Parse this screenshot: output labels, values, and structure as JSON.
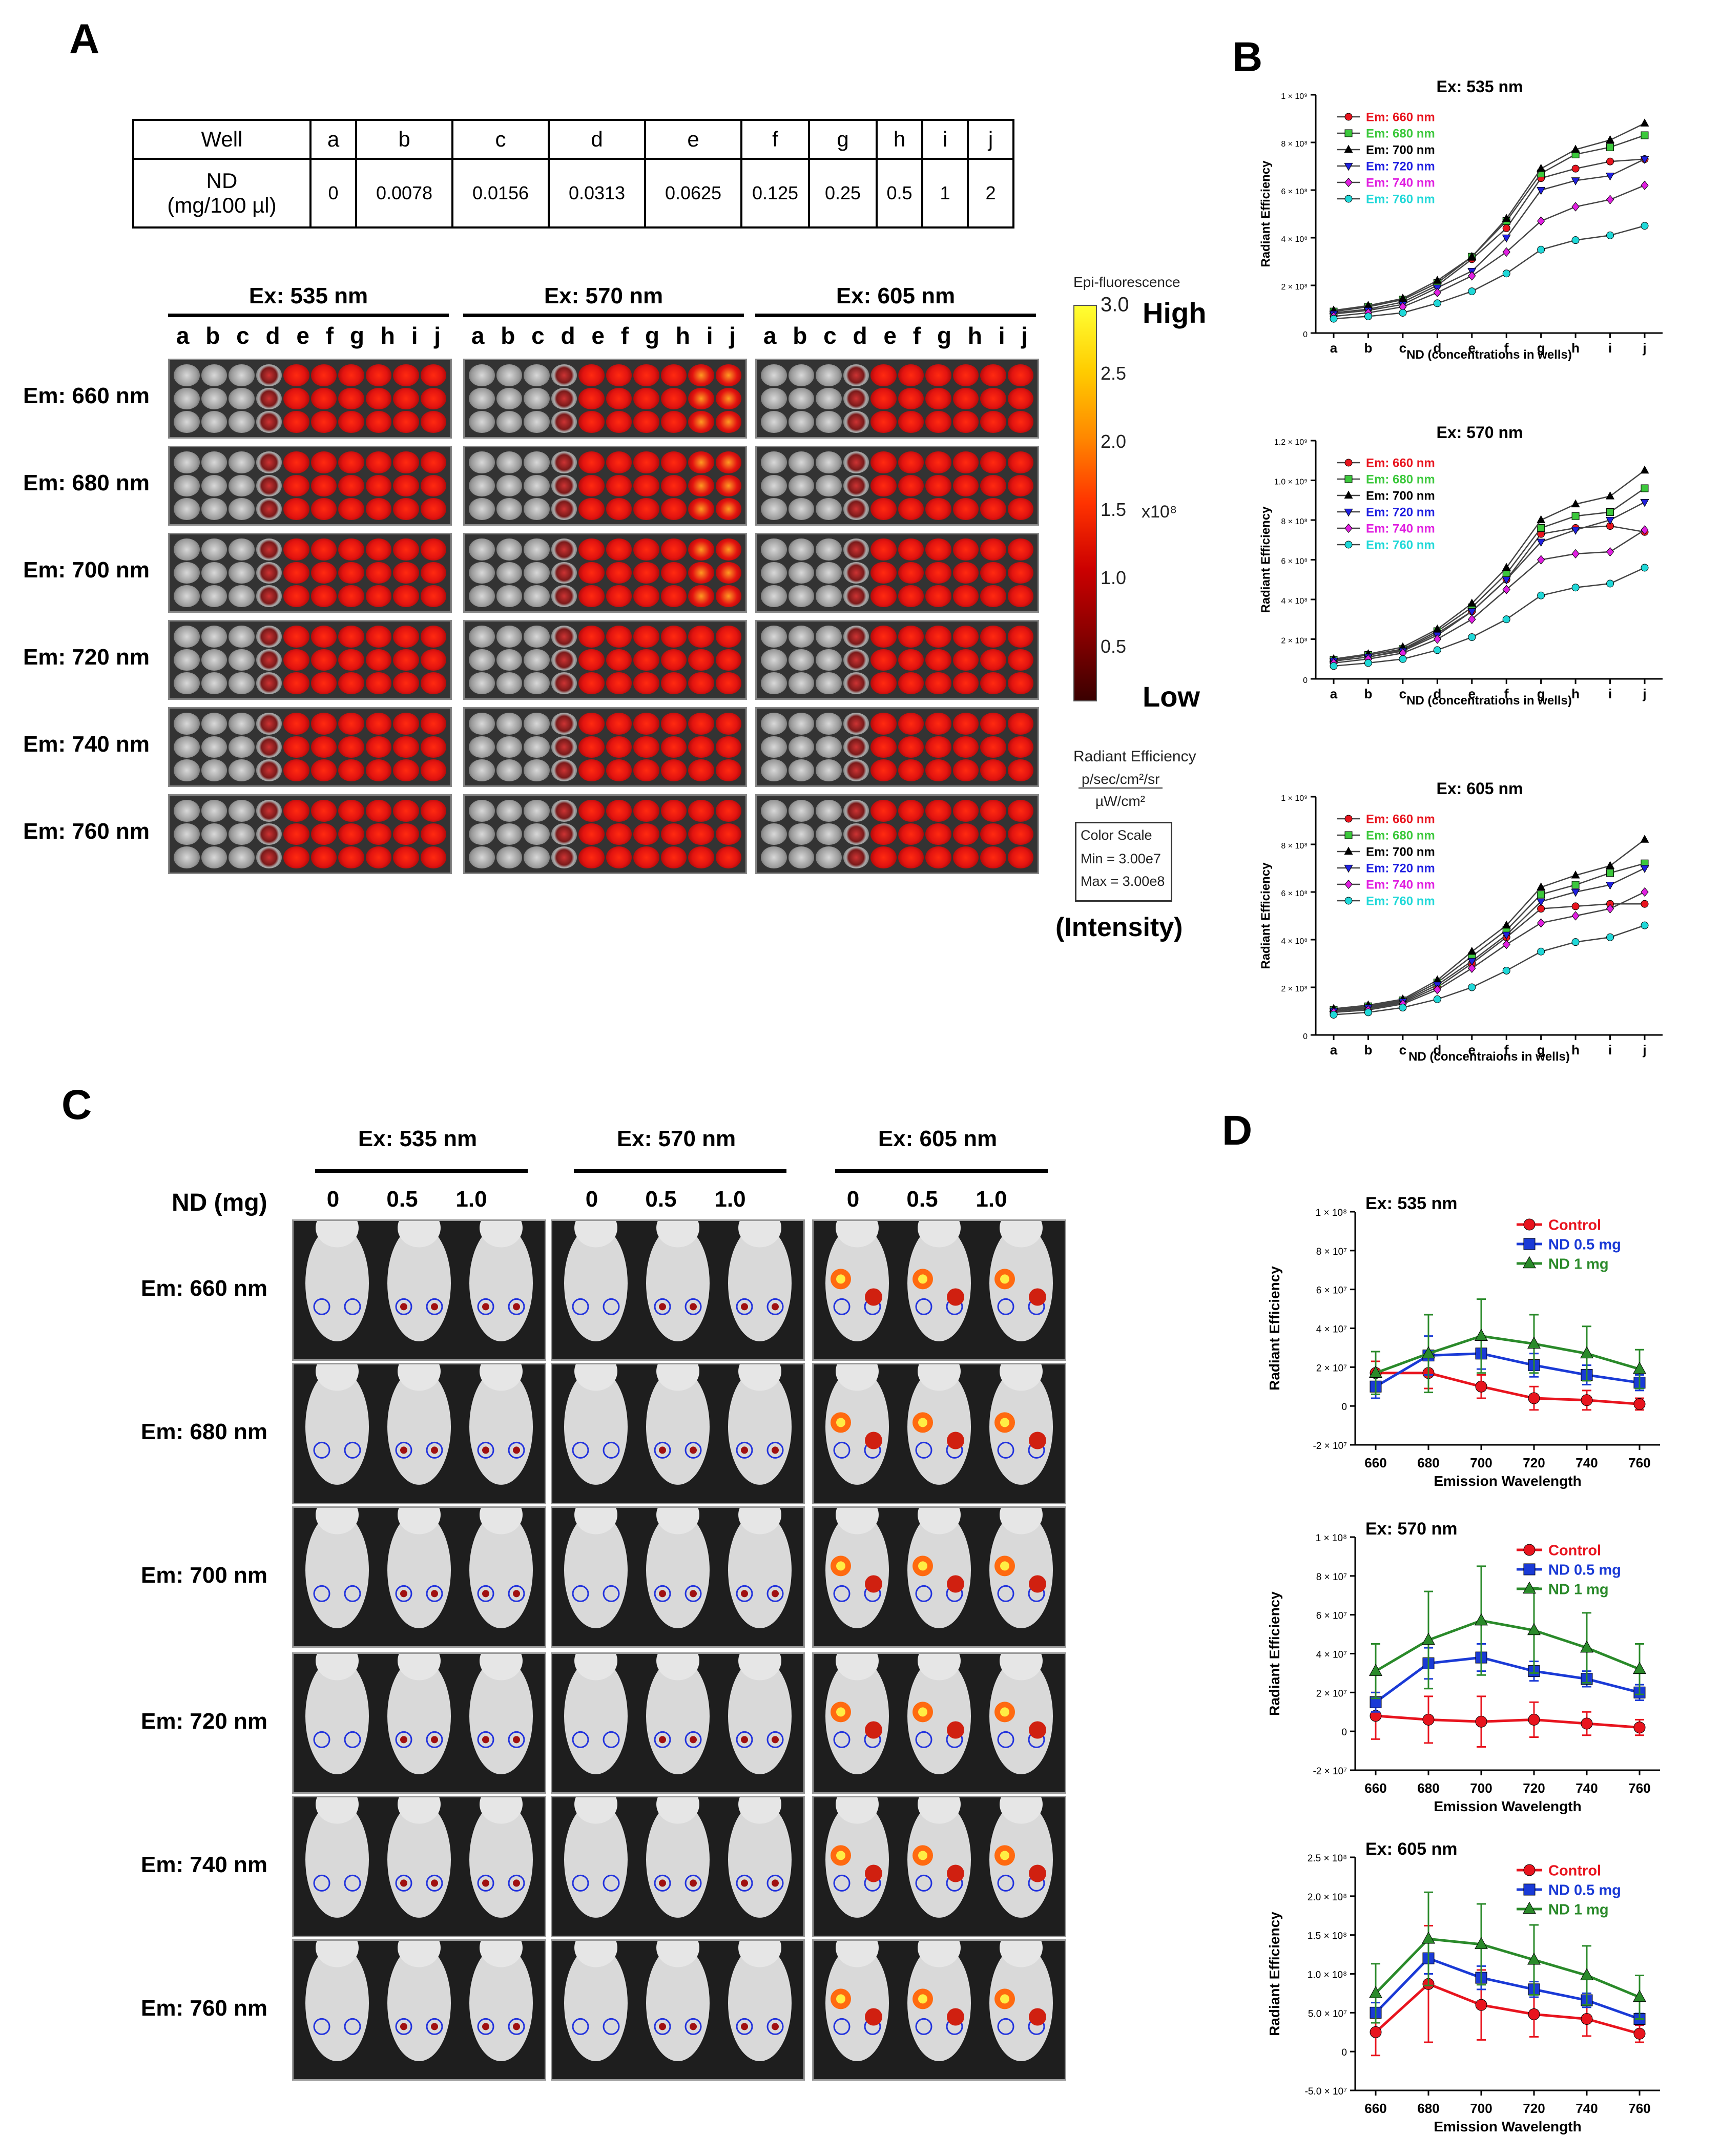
{
  "panels": {
    "A": "A",
    "B": "B",
    "C": "C",
    "D": "D"
  },
  "well_table": {
    "row1_label": "Well",
    "row2_label": "ND\n(mg/100 µl)",
    "wells": [
      "a",
      "b",
      "c",
      "d",
      "e",
      "f",
      "g",
      "h",
      "i",
      "j"
    ],
    "nd_values": [
      "0",
      "0.0078",
      "0.0156",
      "0.0313",
      "0.0625",
      "0.125",
      "0.25",
      "0.5",
      "1",
      "2"
    ]
  },
  "plate_grid": {
    "excitations": [
      "Ex: 535 nm",
      "Ex: 570 nm",
      "Ex: 605 nm"
    ],
    "emissions": [
      "Em: 660 nm",
      "Em: 680 nm",
      "Em: 700 nm",
      "Em: 720 nm",
      "Em: 740 nm",
      "Em: 760 nm"
    ],
    "well_letters": [
      "a",
      "b",
      "c",
      "d",
      "e",
      "f",
      "g",
      "h",
      "i",
      "j"
    ]
  },
  "colorbar": {
    "title": "Epi-fluorescence",
    "high": "High",
    "low": "Low",
    "ticks": [
      "3.0",
      "2.5",
      "2.0",
      "1.5",
      "1.0",
      "0.5"
    ],
    "exponent": "x10⁸",
    "unit_label": "Radiant Efficiency",
    "unit_num": "p/sec/cm²/sr",
    "unit_den": "µW/cm²",
    "scale_title": "Color Scale",
    "scale_min": "Min = 3.00e7",
    "scale_max": "Max = 3.00e8",
    "intensity": "(Intensity)",
    "colors": [
      "#ffff33",
      "#ffcc00",
      "#ff8800",
      "#ff3300",
      "#cc0000",
      "#880000",
      "#3a0000"
    ]
  },
  "mice_grid": {
    "excitations": [
      "Ex: 535 nm",
      "Ex: 570 nm",
      "Ex: 605 nm"
    ],
    "nd_label": "ND (mg)",
    "doses": [
      "0",
      "0.5",
      "1.0"
    ],
    "emissions": [
      "Em: 660 nm",
      "Em: 680 nm",
      "Em: 700 nm",
      "Em: 720 nm",
      "Em: 740 nm",
      "Em: 760 nm"
    ]
  },
  "chart_data": [
    {
      "id": "B1",
      "type": "line",
      "title": "Ex: 535 nm",
      "xlabel": "ND (concentrations in wells)",
      "ylabel": "Radiant Efficiency",
      "categories": [
        "a",
        "b",
        "c",
        "d",
        "e",
        "f",
        "g",
        "h",
        "i",
        "j"
      ],
      "ylim": [
        0,
        1000000000.0
      ],
      "yticks": [
        0,
        200000000.0,
        400000000.0,
        600000000.0,
        800000000.0,
        1000000000.0
      ],
      "ytick_labels": [
        "0",
        "2 × 10⁸",
        "4 × 10⁸",
        "6 × 10⁸",
        "8 × 10⁸",
        "1 × 10⁹"
      ],
      "series": [
        {
          "name": "Em: 660 nm",
          "color": "#e8141e",
          "marker": "circle",
          "values": [
            85000000.0,
            100000000.0,
            130000000.0,
            200000000.0,
            310000000.0,
            440000000.0,
            650000000.0,
            690000000.0,
            720000000.0,
            730000000.0
          ]
        },
        {
          "name": "Em: 680 nm",
          "color": "#3cc83c",
          "marker": "square",
          "values": [
            90000000.0,
            110000000.0,
            140000000.0,
            210000000.0,
            320000000.0,
            470000000.0,
            670000000.0,
            750000000.0,
            780000000.0,
            830000000.0
          ]
        },
        {
          "name": "Em: 700 nm",
          "color": "#000000",
          "marker": "triangle",
          "values": [
            95000000.0,
            115000000.0,
            145000000.0,
            220000000.0,
            320000000.0,
            480000000.0,
            690000000.0,
            770000000.0,
            810000000.0,
            880000000.0
          ]
        },
        {
          "name": "Em: 720 nm",
          "color": "#2020e0",
          "marker": "tridown",
          "values": [
            80000000.0,
            95000000.0,
            120000000.0,
            190000000.0,
            260000000.0,
            400000000.0,
            600000000.0,
            640000000.0,
            660000000.0,
            730000000.0
          ]
        },
        {
          "name": "Em: 740 nm",
          "color": "#e020e0",
          "marker": "diamond",
          "values": [
            70000000.0,
            85000000.0,
            110000000.0,
            170000000.0,
            240000000.0,
            340000000.0,
            470000000.0,
            530000000.0,
            560000000.0,
            620000000.0
          ]
        },
        {
          "name": "Em: 760 nm",
          "color": "#20d8d8",
          "marker": "hexagon",
          "values": [
            60000000.0,
            70000000.0,
            85000000.0,
            125000000.0,
            175000000.0,
            250000000.0,
            350000000.0,
            390000000.0,
            410000000.0,
            450000000.0
          ]
        }
      ]
    },
    {
      "id": "B2",
      "type": "line",
      "title": "Ex: 570 nm",
      "xlabel": "ND (concentrations in wells)",
      "ylabel": "Radiant Efficiency",
      "categories": [
        "a",
        "b",
        "c",
        "d",
        "e",
        "f",
        "g",
        "h",
        "i",
        "j"
      ],
      "ylim": [
        0,
        1200000000.0
      ],
      "yticks": [
        0,
        200000000.0,
        400000000.0,
        600000000.0,
        800000000.0,
        1000000000.0,
        1200000000.0
      ],
      "ytick_labels": [
        "0",
        "2 × 10⁸",
        "4 × 10⁸",
        "6 × 10⁸",
        "8 × 10⁸",
        "1.0 × 10⁹",
        "1.2 × 10⁹"
      ],
      "series": [
        {
          "name": "Em: 660 nm",
          "color": "#e8141e",
          "marker": "circle",
          "values": [
            90000000.0,
            110000000.0,
            145000000.0,
            230000000.0,
            340000000.0,
            500000000.0,
            730000000.0,
            760000000.0,
            770000000.0,
            740000000.0
          ]
        },
        {
          "name": "Em: 680 nm",
          "color": "#3cc83c",
          "marker": "square",
          "values": [
            95000000.0,
            120000000.0,
            150000000.0,
            240000000.0,
            360000000.0,
            530000000.0,
            760000000.0,
            820000000.0,
            840000000.0,
            960000000.0
          ]
        },
        {
          "name": "Em: 700 nm",
          "color": "#000000",
          "marker": "triangle",
          "values": [
            100000000.0,
            125000000.0,
            160000000.0,
            250000000.0,
            380000000.0,
            560000000.0,
            800000000.0,
            880000000.0,
            920000000.0,
            1050000000.0
          ]
        },
        {
          "name": "Em: 720 nm",
          "color": "#2020e0",
          "marker": "tridown",
          "values": [
            90000000.0,
            110000000.0,
            140000000.0,
            220000000.0,
            340000000.0,
            500000000.0,
            690000000.0,
            750000000.0,
            800000000.0,
            890000000.0
          ]
        },
        {
          "name": "Em: 740 nm",
          "color": "#e020e0",
          "marker": "diamond",
          "values": [
            80000000.0,
            100000000.0,
            130000000.0,
            200000000.0,
            300000000.0,
            450000000.0,
            600000000.0,
            630000000.0,
            640000000.0,
            750000000.0
          ]
        },
        {
          "name": "Em: 760 nm",
          "color": "#20d8d8",
          "marker": "hexagon",
          "values": [
            65000000.0,
            80000000.0,
            100000000.0,
            145000000.0,
            210000000.0,
            300000000.0,
            420000000.0,
            460000000.0,
            480000000.0,
            560000000.0
          ]
        }
      ]
    },
    {
      "id": "B3",
      "type": "line",
      "title": "Ex: 605 nm",
      "xlabel": "ND (concentraions in wells)",
      "ylabel": "Radiant Efficiency",
      "categories": [
        "a",
        "b",
        "c",
        "d",
        "e",
        "f",
        "g",
        "h",
        "i",
        "j"
      ],
      "ylim": [
        0,
        1000000000.0
      ],
      "yticks": [
        0,
        200000000.0,
        400000000.0,
        600000000.0,
        800000000.0,
        1000000000.0
      ],
      "ytick_labels": [
        "0",
        "2 × 10⁸",
        "4 × 10⁸",
        "6 × 10⁸",
        "8 × 10⁸",
        "1 × 10⁹"
      ],
      "series": [
        {
          "name": "Em: 660 nm",
          "color": "#e8141e",
          "marker": "circle",
          "values": [
            100000000.0,
            110000000.0,
            135000000.0,
            200000000.0,
            300000000.0,
            410000000.0,
            530000000.0,
            540000000.0,
            550000000.0,
            550000000.0
          ]
        },
        {
          "name": "Em: 680 nm",
          "color": "#3cc83c",
          "marker": "square",
          "values": [
            105000000.0,
            120000000.0,
            145000000.0,
            220000000.0,
            330000000.0,
            440000000.0,
            590000000.0,
            630000000.0,
            680000000.0,
            720000000.0
          ]
        },
        {
          "name": "Em: 700 nm",
          "color": "#000000",
          "marker": "triangle",
          "values": [
            110000000.0,
            125000000.0,
            150000000.0,
            230000000.0,
            350000000.0,
            460000000.0,
            620000000.0,
            670000000.0,
            710000000.0,
            820000000.0
          ]
        },
        {
          "name": "Em: 720 nm",
          "color": "#2020e0",
          "marker": "tridown",
          "values": [
            100000000.0,
            115000000.0,
            140000000.0,
            210000000.0,
            310000000.0,
            420000000.0,
            560000000.0,
            600000000.0,
            630000000.0,
            700000000.0
          ]
        },
        {
          "name": "Em: 740 nm",
          "color": "#e020e0",
          "marker": "diamond",
          "values": [
            95000000.0,
            105000000.0,
            130000000.0,
            190000000.0,
            280000000.0,
            380000000.0,
            470000000.0,
            500000000.0,
            530000000.0,
            600000000.0
          ]
        },
        {
          "name": "Em: 760 nm",
          "color": "#20d8d8",
          "marker": "hexagon",
          "values": [
            85000000.0,
            95000000.0,
            115000000.0,
            150000000.0,
            200000000.0,
            270000000.0,
            350000000.0,
            390000000.0,
            410000000.0,
            460000000.0
          ]
        }
      ]
    },
    {
      "id": "D1",
      "type": "line",
      "title": "Ex: 535 nm",
      "xlabel": "Emission Wavelength",
      "ylabel": "Radiant Efficiency",
      "categories": [
        "660",
        "680",
        "700",
        "720",
        "740",
        "760"
      ],
      "ylim": [
        -20000000.0,
        100000000.0
      ],
      "yticks": [
        -20000000.0,
        0,
        20000000.0,
        40000000.0,
        60000000.0,
        80000000.0,
        100000000.0
      ],
      "ytick_labels": [
        "-2 × 10⁷",
        "0",
        "2 × 10⁷",
        "4 × 10⁷",
        "6 × 10⁷",
        "8 × 10⁷",
        "1 × 10⁸"
      ],
      "series": [
        {
          "name": "Control",
          "color": "#e8141e",
          "marker": "circle",
          "values": [
            17000000.0,
            17000000.0,
            10000000.0,
            4000000.0,
            3000000.0,
            1000000.0
          ],
          "errors": [
            6000000.0,
            8000000.0,
            6000000.0,
            6000000.0,
            5000000.0,
            3000000.0
          ]
        },
        {
          "name": "ND 0.5 mg",
          "color": "#1a3ad6",
          "marker": "square",
          "values": [
            10000000.0,
            26000000.0,
            27000000.0,
            21000000.0,
            16000000.0,
            12000000.0
          ],
          "errors": [
            6000000.0,
            10000000.0,
            8000000.0,
            6000000.0,
            5000000.0,
            4000000.0
          ]
        },
        {
          "name": "ND  1 mg",
          "color": "#2a8a2a",
          "marker": "triangle",
          "values": [
            17000000.0,
            27000000.0,
            36000000.0,
            32000000.0,
            27000000.0,
            19000000.0
          ],
          "errors": [
            11000000.0,
            20000000.0,
            19000000.0,
            15000000.0,
            14000000.0,
            10000000.0
          ]
        }
      ]
    },
    {
      "id": "D2",
      "type": "line",
      "title": "Ex: 570 nm",
      "xlabel": "Emission Wavelength",
      "ylabel": "Radiant Efficiency",
      "categories": [
        "660",
        "680",
        "700",
        "720",
        "740",
        "760"
      ],
      "ylim": [
        -20000000.0,
        100000000.0
      ],
      "yticks": [
        -20000000.0,
        0,
        20000000.0,
        40000000.0,
        60000000.0,
        80000000.0,
        100000000.0
      ],
      "ytick_labels": [
        "-2 × 10⁷",
        "0",
        "2 × 10⁷",
        "4 × 10⁷",
        "6 × 10⁷",
        "8 × 10⁷",
        "1 × 10⁸"
      ],
      "series": [
        {
          "name": "Control",
          "color": "#e8141e",
          "marker": "circle",
          "values": [
            8000000.0,
            6000000.0,
            5000000.0,
            6000000.0,
            4000000.0,
            2000000.0
          ],
          "errors": [
            12000000.0,
            12000000.0,
            13000000.0,
            9000000.0,
            6000000.0,
            4000000.0
          ]
        },
        {
          "name": "ND 0.5 mg",
          "color": "#1a3ad6",
          "marker": "square",
          "values": [
            15000000.0,
            35000000.0,
            38000000.0,
            31000000.0,
            27000000.0,
            20000000.0
          ],
          "errors": [
            5000000.0,
            8000000.0,
            7000000.0,
            5000000.0,
            4000000.0,
            4000000.0
          ]
        },
        {
          "name": "ND  1 mg",
          "color": "#2a8a2a",
          "marker": "triangle",
          "values": [
            31000000.0,
            47000000.0,
            57000000.0,
            52000000.0,
            43000000.0,
            32000000.0
          ],
          "errors": [
            14000000.0,
            25000000.0,
            28000000.0,
            22000000.0,
            18000000.0,
            13000000.0
          ]
        }
      ]
    },
    {
      "id": "D3",
      "type": "line",
      "title": "Ex: 605 nm",
      "xlabel": "Emission Wavelength",
      "ylabel": "Radiant Efficiency",
      "categories": [
        "660",
        "680",
        "700",
        "720",
        "740",
        "760"
      ],
      "ylim": [
        -50000000.0,
        250000000.0
      ],
      "yticks": [
        -50000000.0,
        0,
        50000000.0,
        100000000.0,
        150000000.0,
        200000000.0,
        250000000.0
      ],
      "ytick_labels": [
        "-5.0 × 10⁷",
        "0",
        "5.0 × 10⁷",
        "1.0 × 10⁸",
        "1.5 × 10⁸",
        "2.0 × 10⁸",
        "2.5 × 10⁸"
      ],
      "series": [
        {
          "name": "Control",
          "color": "#e8141e",
          "marker": "circle",
          "values": [
            25000000.0,
            87000000.0,
            60000000.0,
            48000000.0,
            42000000.0,
            23000000.0
          ],
          "errors": [
            30000000.0,
            75000000.0,
            45000000.0,
            29000000.0,
            22000000.0,
            11000000.0
          ]
        },
        {
          "name": "ND 0.5 mg",
          "color": "#1a3ad6",
          "marker": "square",
          "values": [
            50000000.0,
            120000000.0,
            95000000.0,
            80000000.0,
            66000000.0,
            42000000.0
          ],
          "errors": [
            13000000.0,
            20000000.0,
            15000000.0,
            10000000.0,
            9000000.0,
            7000000.0
          ]
        },
        {
          "name": "ND  1 mg",
          "color": "#2a8a2a",
          "marker": "triangle",
          "values": [
            75000000.0,
            145000000.0,
            138000000.0,
            118000000.0,
            98000000.0,
            70000000.0
          ],
          "errors": [
            38000000.0,
            60000000.0,
            52000000.0,
            45000000.0,
            38000000.0,
            28000000.0
          ]
        }
      ]
    }
  ]
}
